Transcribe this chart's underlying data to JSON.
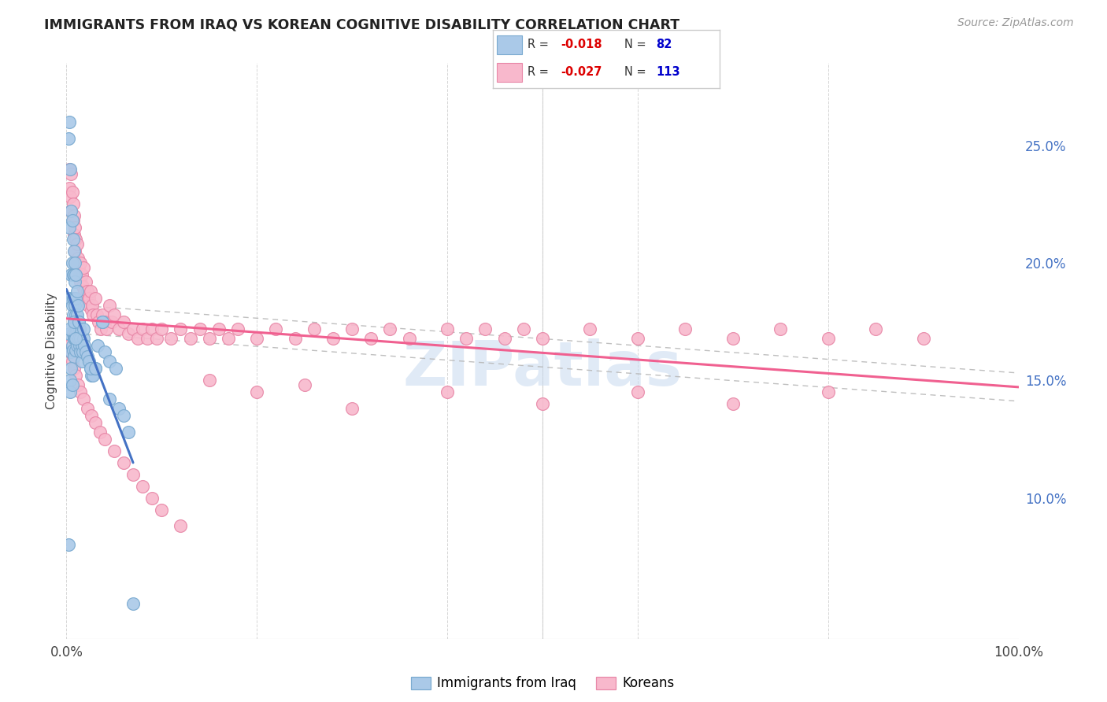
{
  "title": "IMMIGRANTS FROM IRAQ VS KOREAN COGNITIVE DISABILITY CORRELATION CHART",
  "source": "Source: ZipAtlas.com",
  "ylabel": "Cognitive Disability",
  "right_yticks": [
    "10.0%",
    "15.0%",
    "20.0%",
    "25.0%"
  ],
  "right_ytick_vals": [
    0.1,
    0.15,
    0.2,
    0.25
  ],
  "iraq_color": "#aac9e8",
  "iraq_edge": "#7aaad0",
  "korean_color": "#f8b8cc",
  "korean_edge": "#e888a8",
  "trendline_iraq_color": "#4472c4",
  "trendline_korean_color": "#f06090",
  "trendline_dashed_color": "#b8b8b8",
  "watermark": "ZIPatlas",
  "watermark_color": "#c8daf0",
  "legend_box_color": "#e8e8e8",
  "iraq_r": "-0.018",
  "iraq_n": "82",
  "korean_r": "-0.027",
  "korean_n": "113",
  "r_color": "#dd0000",
  "n_color": "#0000cc",
  "iraq_x": [
    0.002,
    0.003,
    0.003,
    0.003,
    0.004,
    0.004,
    0.004,
    0.005,
    0.005,
    0.005,
    0.006,
    0.006,
    0.006,
    0.006,
    0.007,
    0.007,
    0.007,
    0.007,
    0.007,
    0.007,
    0.008,
    0.008,
    0.008,
    0.008,
    0.008,
    0.008,
    0.009,
    0.009,
    0.009,
    0.009,
    0.009,
    0.01,
    0.01,
    0.01,
    0.01,
    0.01,
    0.011,
    0.011,
    0.011,
    0.011,
    0.012,
    0.012,
    0.013,
    0.013,
    0.014,
    0.014,
    0.015,
    0.015,
    0.016,
    0.016,
    0.017,
    0.018,
    0.019,
    0.02,
    0.022,
    0.024,
    0.025,
    0.026,
    0.028,
    0.03,
    0.033,
    0.038,
    0.04,
    0.045,
    0.052,
    0.002,
    0.003,
    0.004,
    0.005,
    0.006,
    0.008,
    0.01,
    0.013,
    0.018,
    0.025,
    0.03,
    0.038,
    0.045,
    0.055,
    0.06,
    0.065,
    0.07
  ],
  "iraq_y": [
    0.253,
    0.26,
    0.215,
    0.17,
    0.24,
    0.185,
    0.15,
    0.222,
    0.195,
    0.162,
    0.218,
    0.2,
    0.182,
    0.165,
    0.21,
    0.195,
    0.185,
    0.178,
    0.17,
    0.163,
    0.205,
    0.195,
    0.185,
    0.175,
    0.168,
    0.16,
    0.2,
    0.192,
    0.182,
    0.175,
    0.168,
    0.195,
    0.185,
    0.178,
    0.17,
    0.163,
    0.188,
    0.178,
    0.172,
    0.165,
    0.182,
    0.175,
    0.175,
    0.168,
    0.172,
    0.165,
    0.168,
    0.162,
    0.165,
    0.158,
    0.162,
    0.168,
    0.165,
    0.162,
    0.16,
    0.158,
    0.155,
    0.152,
    0.152,
    0.155,
    0.165,
    0.175,
    0.162,
    0.158,
    0.155,
    0.08,
    0.172,
    0.145,
    0.155,
    0.148,
    0.175,
    0.168,
    0.175,
    0.172,
    0.155,
    0.155,
    0.175,
    0.142,
    0.138,
    0.135,
    0.128,
    0.055
  ],
  "korean_x": [
    0.003,
    0.003,
    0.004,
    0.005,
    0.005,
    0.006,
    0.007,
    0.007,
    0.008,
    0.008,
    0.009,
    0.009,
    0.01,
    0.011,
    0.011,
    0.012,
    0.013,
    0.014,
    0.015,
    0.015,
    0.016,
    0.017,
    0.018,
    0.019,
    0.02,
    0.021,
    0.022,
    0.023,
    0.024,
    0.025,
    0.026,
    0.027,
    0.028,
    0.03,
    0.032,
    0.034,
    0.036,
    0.038,
    0.04,
    0.042,
    0.045,
    0.048,
    0.05,
    0.055,
    0.06,
    0.065,
    0.07,
    0.075,
    0.08,
    0.085,
    0.09,
    0.095,
    0.1,
    0.11,
    0.12,
    0.13,
    0.14,
    0.15,
    0.16,
    0.17,
    0.18,
    0.2,
    0.22,
    0.24,
    0.26,
    0.28,
    0.3,
    0.32,
    0.34,
    0.36,
    0.4,
    0.42,
    0.44,
    0.46,
    0.48,
    0.5,
    0.55,
    0.6,
    0.65,
    0.7,
    0.75,
    0.8,
    0.85,
    0.9,
    0.003,
    0.004,
    0.006,
    0.008,
    0.01,
    0.012,
    0.015,
    0.018,
    0.022,
    0.026,
    0.03,
    0.035,
    0.04,
    0.05,
    0.06,
    0.07,
    0.08,
    0.09,
    0.1,
    0.12,
    0.15,
    0.2,
    0.25,
    0.3,
    0.4,
    0.5,
    0.6,
    0.7,
    0.8
  ],
  "korean_y": [
    0.24,
    0.232,
    0.228,
    0.238,
    0.222,
    0.23,
    0.225,
    0.218,
    0.22,
    0.212,
    0.215,
    0.205,
    0.21,
    0.208,
    0.2,
    0.202,
    0.198,
    0.195,
    0.2,
    0.192,
    0.195,
    0.19,
    0.198,
    0.188,
    0.192,
    0.185,
    0.188,
    0.182,
    0.185,
    0.188,
    0.18,
    0.182,
    0.178,
    0.185,
    0.178,
    0.175,
    0.172,
    0.178,
    0.175,
    0.172,
    0.182,
    0.175,
    0.178,
    0.172,
    0.175,
    0.17,
    0.172,
    0.168,
    0.172,
    0.168,
    0.172,
    0.168,
    0.172,
    0.168,
    0.172,
    0.168,
    0.172,
    0.168,
    0.172,
    0.168,
    0.172,
    0.168,
    0.172,
    0.168,
    0.172,
    0.168,
    0.172,
    0.168,
    0.172,
    0.168,
    0.172,
    0.168,
    0.172,
    0.168,
    0.172,
    0.168,
    0.172,
    0.168,
    0.172,
    0.168,
    0.172,
    0.168,
    0.172,
    0.168,
    0.165,
    0.162,
    0.158,
    0.155,
    0.152,
    0.148,
    0.145,
    0.142,
    0.138,
    0.135,
    0.132,
    0.128,
    0.125,
    0.12,
    0.115,
    0.11,
    0.105,
    0.1,
    0.095,
    0.088,
    0.15,
    0.145,
    0.148,
    0.138,
    0.145,
    0.14,
    0.145,
    0.14,
    0.145
  ],
  "xmin": 0.0,
  "xmax": 1.0,
  "ymin": 0.04,
  "ymax": 0.285
}
